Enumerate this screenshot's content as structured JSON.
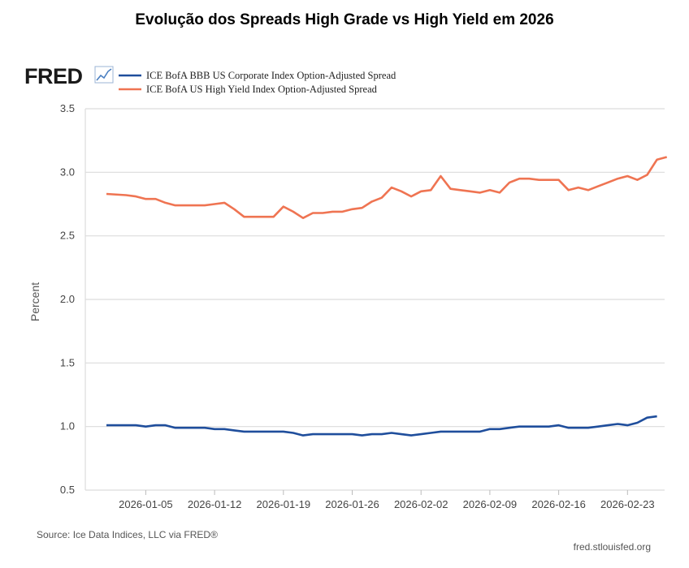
{
  "page_title": "Evolução dos Spreads High Grade vs High Yield em 2026",
  "logo": {
    "text": "FRED"
  },
  "footer": {
    "source": "Source: Ice Data Indices, LLC via FRED®",
    "site": "fred.stlouisfed.org"
  },
  "chart_data": {
    "type": "line",
    "title": "Evolução dos Spreads High Grade vs High Yield em 2026",
    "xlabel": "",
    "ylabel": "Percent",
    "ylim": [
      0.5,
      3.5
    ],
    "yticks": [
      "3.5",
      "3.0",
      "2.5",
      "2.0",
      "1.5",
      "1.0",
      "0.5"
    ],
    "xticks": [
      "2026-01-05",
      "2026-01-12",
      "2026-01-19",
      "2026-01-26",
      "2026-02-02",
      "2026-02-09",
      "2026-02-16",
      "2026-02-23"
    ],
    "grid": true,
    "legend_position": "top-left",
    "series": [
      {
        "name": "ICE BofA BBB US Corporate Index Option-Adjusted Spread",
        "color": "#1f4e9c",
        "points": [
          [
            0,
            1.01
          ],
          [
            2,
            1.01
          ],
          [
            3,
            1.01
          ],
          [
            4,
            1.0
          ],
          [
            5,
            1.01
          ],
          [
            6,
            1.01
          ],
          [
            7,
            0.99
          ],
          [
            8,
            0.99
          ],
          [
            9,
            0.99
          ],
          [
            10,
            0.99
          ],
          [
            11,
            0.98
          ],
          [
            12,
            0.98
          ],
          [
            13,
            0.97
          ],
          [
            14,
            0.96
          ],
          [
            15,
            0.96
          ],
          [
            16,
            0.96
          ],
          [
            17,
            0.96
          ],
          [
            18,
            0.96
          ],
          [
            19,
            0.95
          ],
          [
            20,
            0.93
          ],
          [
            21,
            0.94
          ],
          [
            22,
            0.94
          ],
          [
            23,
            0.94
          ],
          [
            24,
            0.94
          ],
          [
            25,
            0.94
          ],
          [
            26,
            0.93
          ],
          [
            27,
            0.94
          ],
          [
            28,
            0.94
          ],
          [
            29,
            0.95
          ],
          [
            30,
            0.94
          ],
          [
            31,
            0.93
          ],
          [
            32,
            0.94
          ],
          [
            33,
            0.95
          ],
          [
            34,
            0.96
          ],
          [
            35,
            0.96
          ],
          [
            36,
            0.96
          ],
          [
            37,
            0.96
          ],
          [
            38,
            0.96
          ],
          [
            39,
            0.98
          ],
          [
            40,
            0.98
          ],
          [
            41,
            0.99
          ],
          [
            42,
            1.0
          ],
          [
            43,
            1.0
          ],
          [
            44,
            1.0
          ],
          [
            45,
            1.0
          ],
          [
            46,
            1.01
          ],
          [
            47,
            0.99
          ],
          [
            48,
            0.99
          ],
          [
            49,
            0.99
          ],
          [
            50,
            1.0
          ],
          [
            51,
            1.01
          ],
          [
            52,
            1.02
          ],
          [
            53,
            1.01
          ],
          [
            54,
            1.03
          ],
          [
            55,
            1.07
          ],
          [
            56,
            1.08
          ]
        ]
      },
      {
        "name": "ICE BofA US High Yield Index Option-Adjusted Spread",
        "color": "#ef7452",
        "points": [
          [
            0,
            2.83
          ],
          [
            2,
            2.82
          ],
          [
            3,
            2.81
          ],
          [
            4,
            2.79
          ],
          [
            5,
            2.79
          ],
          [
            6,
            2.76
          ],
          [
            7,
            2.74
          ],
          [
            8,
            2.74
          ],
          [
            9,
            2.74
          ],
          [
            10,
            2.74
          ],
          [
            11,
            2.75
          ],
          [
            12,
            2.76
          ],
          [
            13,
            2.71
          ],
          [
            14,
            2.65
          ],
          [
            15,
            2.65
          ],
          [
            16,
            2.65
          ],
          [
            17,
            2.65
          ],
          [
            18,
            2.73
          ],
          [
            19,
            2.69
          ],
          [
            20,
            2.64
          ],
          [
            21,
            2.68
          ],
          [
            22,
            2.68
          ],
          [
            23,
            2.69
          ],
          [
            24,
            2.69
          ],
          [
            25,
            2.71
          ],
          [
            26,
            2.72
          ],
          [
            27,
            2.77
          ],
          [
            28,
            2.8
          ],
          [
            29,
            2.88
          ],
          [
            30,
            2.85
          ],
          [
            31,
            2.81
          ],
          [
            32,
            2.85
          ],
          [
            33,
            2.86
          ],
          [
            34,
            2.97
          ],
          [
            35,
            2.87
          ],
          [
            36,
            2.86
          ],
          [
            37,
            2.85
          ],
          [
            38,
            2.84
          ],
          [
            39,
            2.86
          ],
          [
            40,
            2.84
          ],
          [
            41,
            2.92
          ],
          [
            42,
            2.95
          ],
          [
            43,
            2.95
          ],
          [
            44,
            2.94
          ],
          [
            45,
            2.94
          ],
          [
            46,
            2.94
          ],
          [
            47,
            2.86
          ],
          [
            48,
            2.88
          ],
          [
            49,
            2.86
          ],
          [
            50,
            2.89
          ],
          [
            51,
            2.92
          ],
          [
            52,
            2.95
          ],
          [
            53,
            2.97
          ],
          [
            54,
            2.94
          ],
          [
            55,
            2.98
          ],
          [
            56,
            3.1
          ],
          [
            57,
            3.12
          ]
        ]
      }
    ]
  }
}
